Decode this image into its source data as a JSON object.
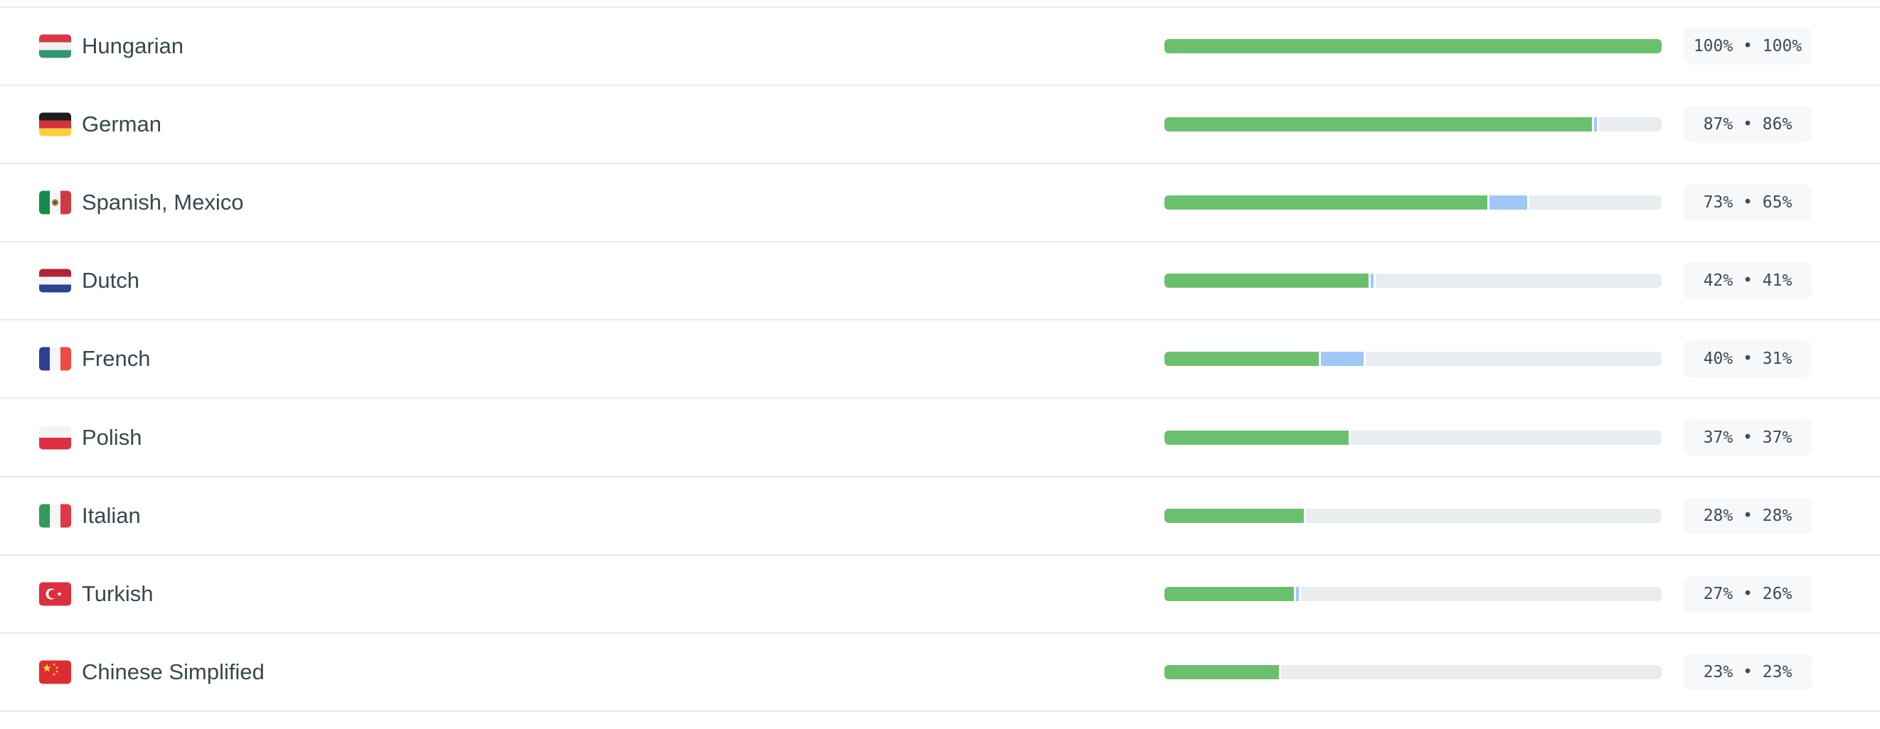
{
  "colors": {
    "progress_translated_green": "#6bc06e",
    "progress_pending_blue": "#9fc8f9",
    "progress_track_gray": "#e9edf0",
    "badge_background": "#f7f8fa",
    "badge_text": "#404a52",
    "language_text": "#37474f",
    "row_separator": "#e9eaec"
  },
  "list": {
    "rows": [
      {
        "language": "Hungarian",
        "flag": "hungary-flag-icon",
        "primary_pct": 100,
        "secondary_pct": 100,
        "badge": "100% • 100%"
      },
      {
        "language": "German",
        "flag": "germany-flag-icon",
        "primary_pct": 87,
        "secondary_pct": 86,
        "badge": "87% • 86%"
      },
      {
        "language": "Spanish, Mexico",
        "flag": "mexico-flag-icon",
        "primary_pct": 73,
        "secondary_pct": 65,
        "badge": "73% • 65%"
      },
      {
        "language": "Dutch",
        "flag": "netherlands-flag-icon",
        "primary_pct": 42,
        "secondary_pct": 41,
        "badge": "42% • 41%"
      },
      {
        "language": "French",
        "flag": "france-flag-icon",
        "primary_pct": 40,
        "secondary_pct": 31,
        "badge": "40% • 31%"
      },
      {
        "language": "Polish",
        "flag": "poland-flag-icon",
        "primary_pct": 37,
        "secondary_pct": 37,
        "badge": "37% • 37%"
      },
      {
        "language": "Italian",
        "flag": "italy-flag-icon",
        "primary_pct": 28,
        "secondary_pct": 28,
        "badge": "28% • 28%"
      },
      {
        "language": "Turkish",
        "flag": "turkey-flag-icon",
        "primary_pct": 27,
        "secondary_pct": 26,
        "badge": "27% • 26%"
      },
      {
        "language": "Chinese Simplified",
        "flag": "china-flag-icon",
        "primary_pct": 23,
        "secondary_pct": 23,
        "badge": "23% • 23%"
      }
    ]
  }
}
